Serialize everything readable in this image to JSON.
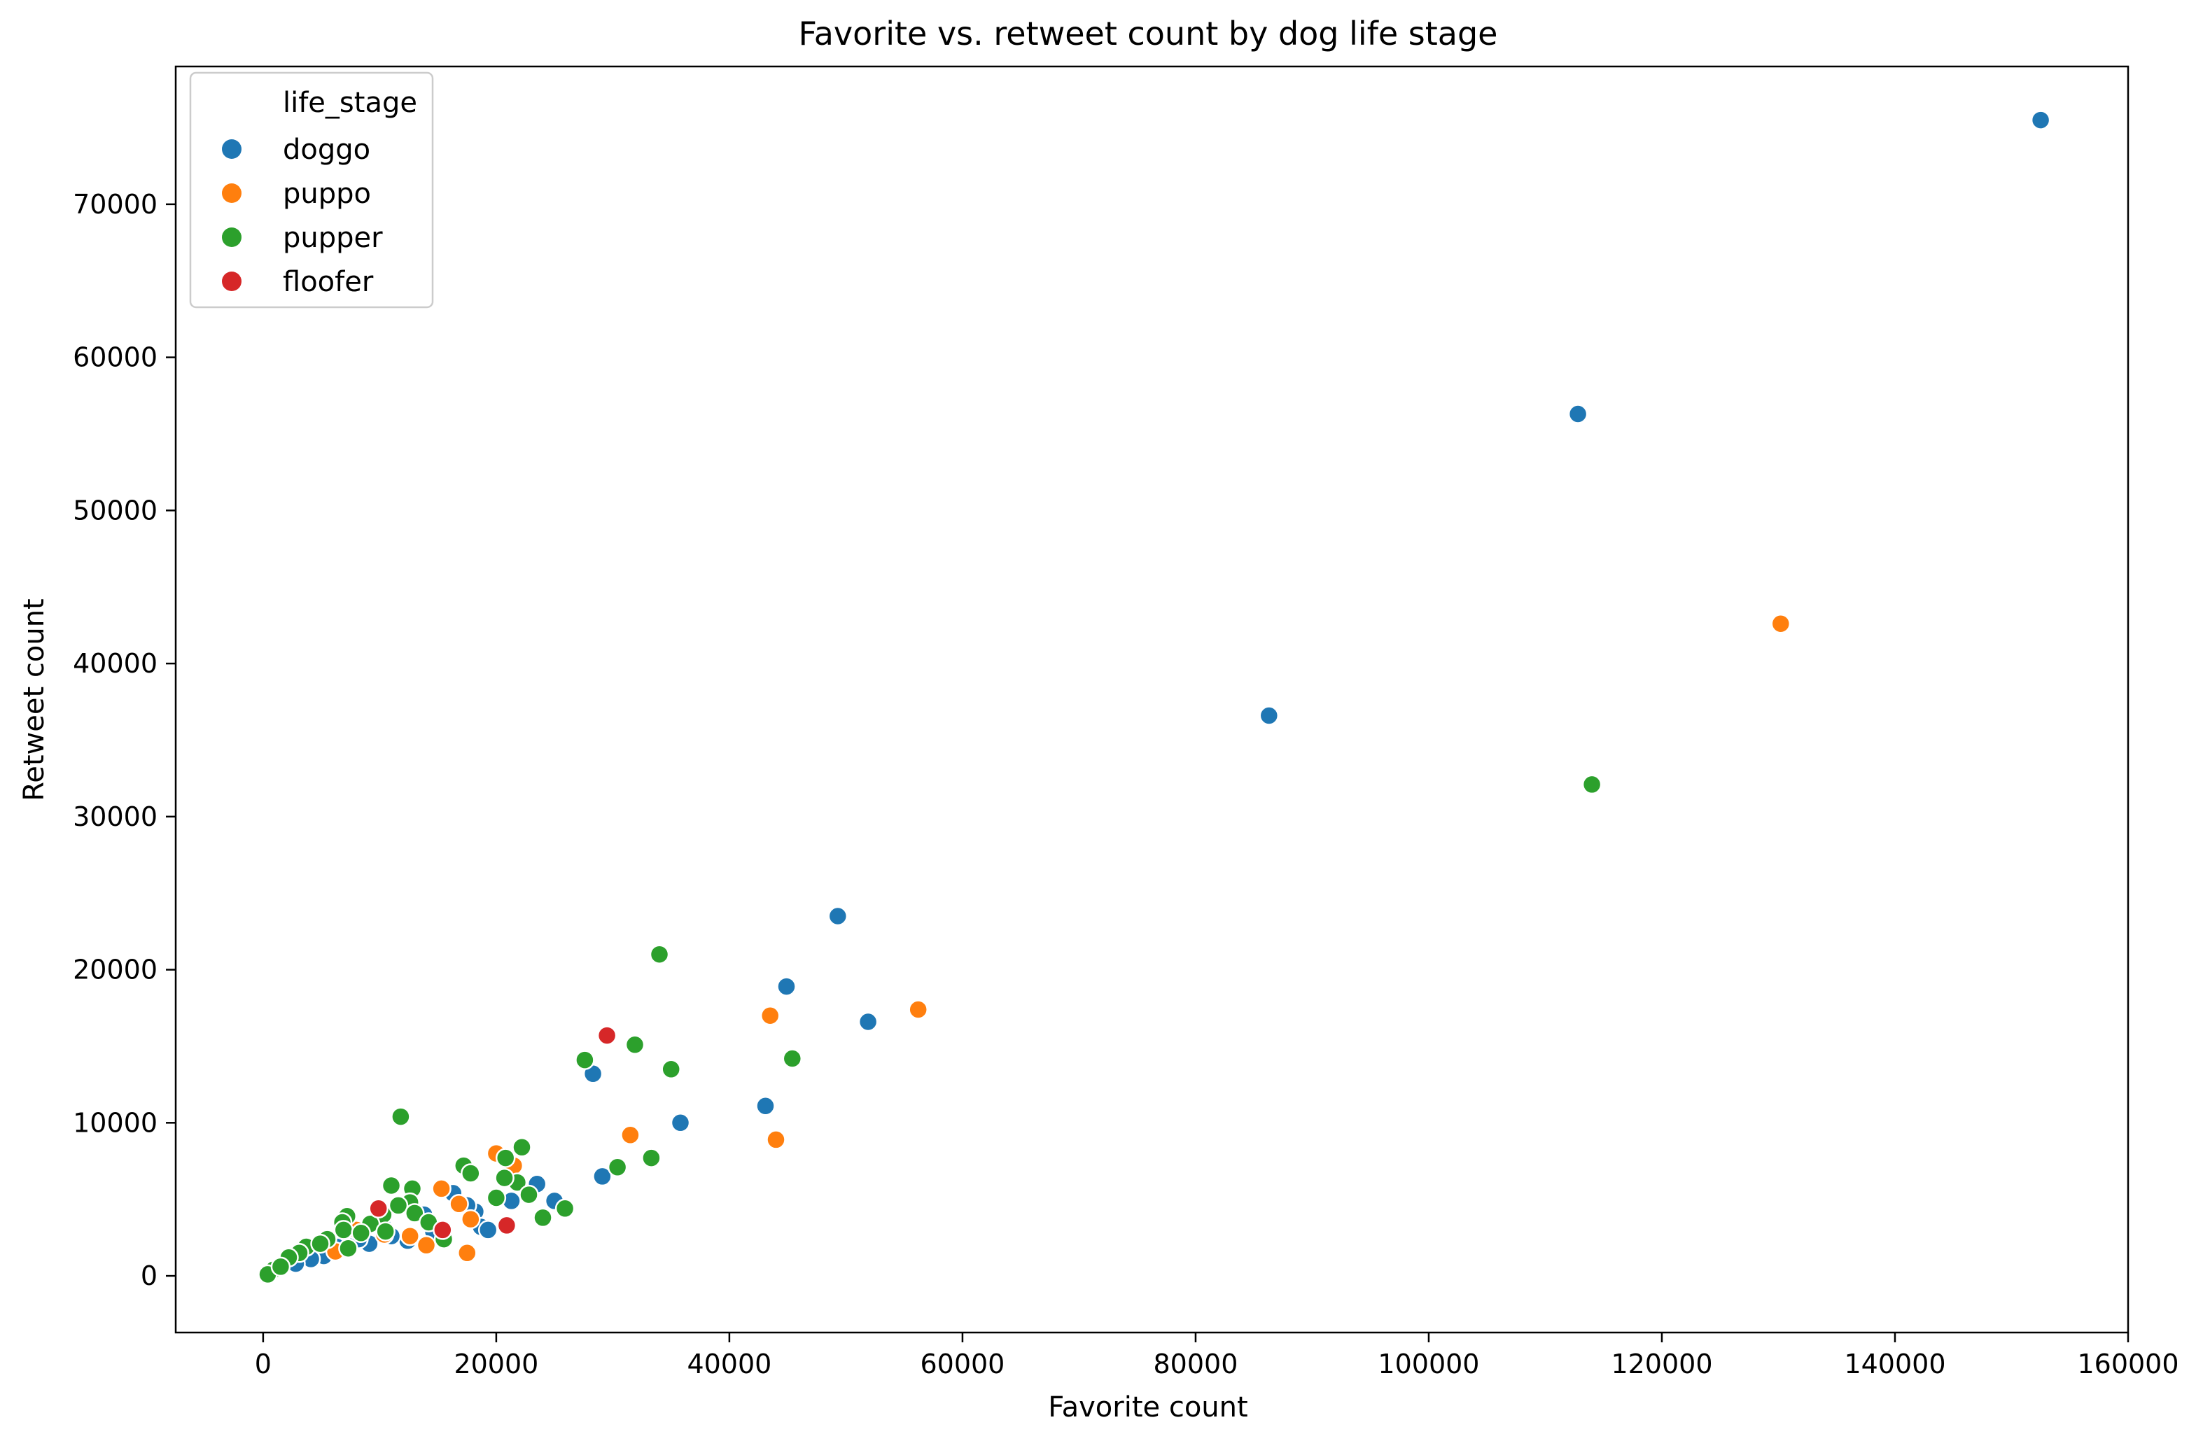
{
  "chart_data": {
    "type": "scatter",
    "title": "Favorite vs. retweet count by dog life stage",
    "xlabel": "Favorite count",
    "ylabel": "Retweet count",
    "xlim": [
      -7500,
      160000
    ],
    "ylim": [
      -3700,
      79000
    ],
    "xticks": [
      0,
      20000,
      40000,
      60000,
      80000,
      100000,
      120000,
      140000,
      160000
    ],
    "yticks": [
      0,
      10000,
      20000,
      30000,
      40000,
      50000,
      60000,
      70000
    ],
    "grid": false,
    "legend": {
      "title": "life_stage",
      "position": "top-left",
      "entries": [
        "doggo",
        "puppo",
        "pupper",
        "floofer"
      ]
    },
    "colors": {
      "doggo": "#1f77b4",
      "puppo": "#ff7f0e",
      "pupper": "#2ca02c",
      "floofer": "#d62728"
    },
    "series": [
      {
        "name": "doggo",
        "points": [
          [
            152500,
            75500
          ],
          [
            112800,
            56300
          ],
          [
            86300,
            36600
          ],
          [
            49300,
            23500
          ],
          [
            44900,
            18900
          ],
          [
            51900,
            16600
          ],
          [
            28300,
            13200
          ],
          [
            43100,
            11100
          ],
          [
            35800,
            10000
          ],
          [
            29100,
            6500
          ],
          [
            23500,
            6000
          ],
          [
            25000,
            4900
          ],
          [
            21300,
            4900
          ],
          [
            18200,
            4200
          ],
          [
            13800,
            4000
          ],
          [
            16300,
            5400
          ],
          [
            18700,
            3200
          ],
          [
            12400,
            2300
          ],
          [
            10200,
            3500
          ],
          [
            9100,
            2100
          ],
          [
            7300,
            1700
          ],
          [
            5200,
            1300
          ],
          [
            4100,
            1100
          ],
          [
            2800,
            800
          ],
          [
            14600,
            2900
          ],
          [
            11000,
            2600
          ],
          [
            6300,
            1900
          ],
          [
            19300,
            3000
          ],
          [
            17500,
            4600
          ],
          [
            8200,
            2400
          ]
        ]
      },
      {
        "name": "puppo",
        "points": [
          [
            130200,
            42600
          ],
          [
            56200,
            17400
          ],
          [
            43500,
            17000
          ],
          [
            31500,
            9200
          ],
          [
            44000,
            8900
          ],
          [
            20000,
            8000
          ],
          [
            21500,
            7200
          ],
          [
            16800,
            4700
          ],
          [
            15300,
            5700
          ],
          [
            17500,
            1500
          ],
          [
            17800,
            3700
          ],
          [
            14000,
            2000
          ],
          [
            10400,
            2700
          ],
          [
            8000,
            3000
          ],
          [
            6200,
            1600
          ],
          [
            12600,
            2600
          ]
        ]
      },
      {
        "name": "pupper",
        "points": [
          [
            114000,
            32100
          ],
          [
            34000,
            21000
          ],
          [
            45400,
            14200
          ],
          [
            27600,
            14100
          ],
          [
            31900,
            15100
          ],
          [
            35000,
            13500
          ],
          [
            11800,
            10400
          ],
          [
            22200,
            8400
          ],
          [
            33300,
            7700
          ],
          [
            20800,
            7700
          ],
          [
            17200,
            7200
          ],
          [
            17800,
            6700
          ],
          [
            30400,
            7100
          ],
          [
            21800,
            6100
          ],
          [
            20700,
            6400
          ],
          [
            22800,
            5300
          ],
          [
            20000,
            5100
          ],
          [
            25900,
            4400
          ],
          [
            24000,
            3800
          ],
          [
            15500,
            2400
          ],
          [
            11000,
            5900
          ],
          [
            12800,
            5700
          ],
          [
            12600,
            4800
          ],
          [
            10300,
            4000
          ],
          [
            11600,
            4600
          ],
          [
            9200,
            3400
          ],
          [
            7200,
            3900
          ],
          [
            6800,
            3500
          ],
          [
            6900,
            3000
          ],
          [
            7300,
            1800
          ],
          [
            5500,
            2400
          ],
          [
            3700,
            1900
          ],
          [
            3100,
            1500
          ],
          [
            2200,
            1200
          ],
          [
            900,
            400
          ],
          [
            400,
            100
          ],
          [
            1500,
            600
          ],
          [
            8400,
            2800
          ],
          [
            13000,
            4100
          ],
          [
            14200,
            3500
          ],
          [
            4900,
            2100
          ],
          [
            10500,
            2900
          ]
        ]
      },
      {
        "name": "floofer",
        "points": [
          [
            29500,
            15700
          ],
          [
            20900,
            3300
          ],
          [
            15400,
            3000
          ],
          [
            9900,
            4400
          ]
        ]
      }
    ]
  }
}
